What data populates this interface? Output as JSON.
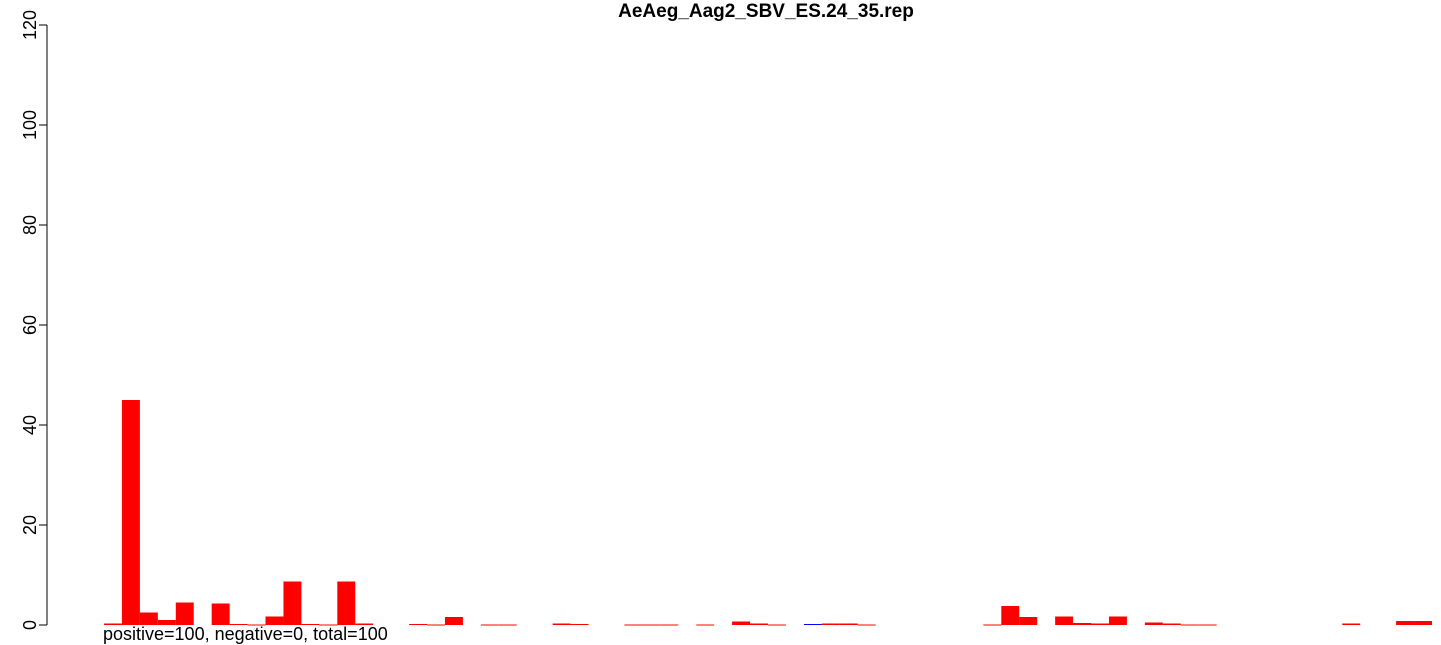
{
  "chart_data": {
    "type": "bar",
    "title": "AeAeg_Aag2_SBV_ES.24_35.rep",
    "xlabel": "",
    "ylabel": "",
    "ylim": [
      0,
      120
    ],
    "yticks": [
      0,
      20,
      40,
      60,
      80,
      100,
      120
    ],
    "grid": false,
    "legend": "none",
    "footer": "positive=100, negative=0, total=100",
    "positive_color": "#ff0000",
    "negative_color": "#0000ff",
    "positive_values": [
      0.3,
      45,
      2.5,
      1,
      4.5,
      0,
      4.3,
      0.2,
      0.1,
      1.7,
      8.7,
      0.2,
      0.1,
      8.7,
      0.3,
      0,
      0,
      0.2,
      0.1,
      1.6,
      0,
      0.1,
      0.1,
      0,
      0,
      0.3,
      0.2,
      0,
      0,
      0.1,
      0.1,
      0.1,
      0,
      0.1,
      0,
      0.7,
      0.3,
      0.1,
      0,
      0,
      0.3,
      0.3,
      0.1,
      0,
      0,
      0,
      0,
      0,
      0,
      0.1,
      3.8,
      1.6,
      0,
      1.7,
      0.4,
      0.3,
      1.7,
      0,
      0.5,
      0.3,
      0.1,
      0.1,
      0,
      0,
      0,
      0,
      0,
      0,
      0,
      0.3,
      0,
      0,
      0.8,
      0.8
    ],
    "negative_values": [
      0,
      0,
      0,
      0,
      0,
      0,
      0,
      0,
      0,
      0,
      0,
      0,
      0,
      0,
      0,
      0,
      0,
      0,
      0,
      0,
      0,
      0,
      0,
      0,
      0,
      0,
      0,
      0,
      0,
      0,
      0,
      0,
      0,
      0,
      0,
      0,
      0,
      0,
      0,
      0.1,
      0,
      0,
      0,
      0,
      0,
      0,
      0,
      0,
      0,
      0,
      0,
      0,
      0,
      0,
      0,
      0,
      0,
      0,
      0,
      0,
      0,
      0,
      0,
      0,
      0,
      0,
      0,
      0,
      0,
      0,
      0,
      0,
      0,
      0
    ]
  }
}
